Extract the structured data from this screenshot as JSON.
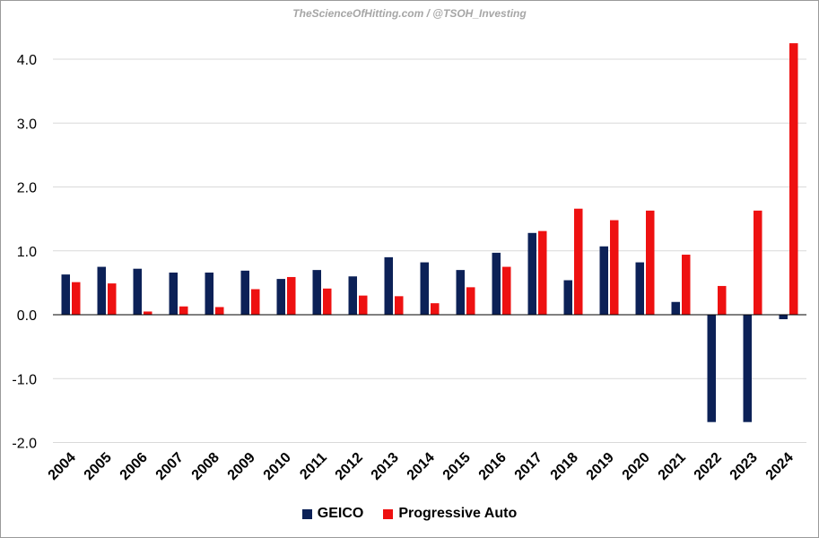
{
  "watermark": "TheScienceOfHitting.com / @TSOH_Investing",
  "colors": {
    "geico": "#0c2157",
    "progressive": "#ee1111",
    "grid": "#d9d9d9",
    "axis": "#000000"
  },
  "chart_data": {
    "type": "bar",
    "title": "",
    "xlabel": "",
    "ylabel": "",
    "ylim": [
      -2.0,
      4.3
    ],
    "yticks": [
      "-2.0",
      "-1.0",
      "0.0",
      "1.0",
      "2.0",
      "3.0",
      "4.0"
    ],
    "ytick_values": [
      -2.0,
      -1.0,
      0.0,
      1.0,
      2.0,
      3.0,
      4.0
    ],
    "grid": true,
    "legend_position": "bottom",
    "categories": [
      "2004",
      "2005",
      "2006",
      "2007",
      "2008",
      "2009",
      "2010",
      "2011",
      "2012",
      "2013",
      "2014",
      "2015",
      "2016",
      "2017",
      "2018",
      "2019",
      "2020",
      "2021",
      "2022",
      "2023",
      "2024"
    ],
    "series": [
      {
        "name": "GEICO",
        "color": "#0c2157",
        "values": [
          0.63,
          0.75,
          0.72,
          0.66,
          0.66,
          0.69,
          0.56,
          0.7,
          0.6,
          0.9,
          0.82,
          0.7,
          0.97,
          1.28,
          0.54,
          1.07,
          0.82,
          0.2,
          -1.68,
          -1.68,
          -0.07
        ]
      },
      {
        "name": "Progressive Auto",
        "color": "#ee1111",
        "values": [
          0.51,
          0.49,
          0.05,
          0.13,
          0.12,
          0.4,
          0.59,
          0.41,
          0.3,
          0.29,
          0.18,
          0.43,
          0.75,
          1.31,
          1.66,
          1.48,
          1.63,
          0.94,
          0.45,
          1.63,
          4.25
        ]
      }
    ]
  }
}
